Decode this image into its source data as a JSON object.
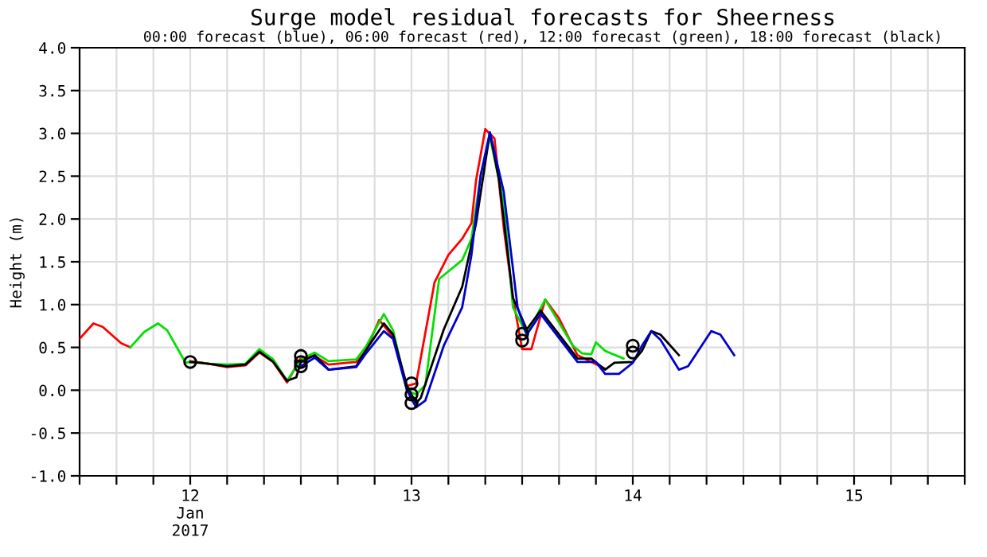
{
  "chart_data": {
    "type": "line",
    "title": "Surge model residual forecasts for Sheerness",
    "subtitle": "00:00 forecast (blue), 06:00 forecast (red), 12:00 forecast (green), 18:00 forecast (black)",
    "ylabel": "Height (m)",
    "xlim": [
      "2017-01-12T00:00",
      "2017-01-16T00:00"
    ],
    "xticks": [
      {
        "value": "2017-01-12T00:00",
        "label": null
      },
      {
        "value": "2017-01-12T04:00",
        "label": null
      },
      {
        "value": "2017-01-12T08:00",
        "label": null
      },
      {
        "value": "2017-01-12T12:00",
        "label": "12\nJan\n2017"
      },
      {
        "value": "2017-01-12T16:00",
        "label": null
      },
      {
        "value": "2017-01-12T20:00",
        "label": null
      },
      {
        "value": "2017-01-13T00:00",
        "label": null
      },
      {
        "value": "2017-01-13T04:00",
        "label": null
      },
      {
        "value": "2017-01-13T08:00",
        "label": null
      },
      {
        "value": "2017-01-13T12:00",
        "label": "13"
      },
      {
        "value": "2017-01-13T16:00",
        "label": null
      },
      {
        "value": "2017-01-13T20:00",
        "label": null
      },
      {
        "value": "2017-01-14T00:00",
        "label": null
      },
      {
        "value": "2017-01-14T04:00",
        "label": null
      },
      {
        "value": "2017-01-14T08:00",
        "label": null
      },
      {
        "value": "2017-01-14T12:00",
        "label": "14"
      },
      {
        "value": "2017-01-14T16:00",
        "label": null
      },
      {
        "value": "2017-01-14T20:00",
        "label": null
      },
      {
        "value": "2017-01-15T00:00",
        "label": null
      },
      {
        "value": "2017-01-15T04:00",
        "label": null
      },
      {
        "value": "2017-01-15T08:00",
        "label": null
      },
      {
        "value": "2017-01-15T12:00",
        "label": "15"
      },
      {
        "value": "2017-01-15T16:00",
        "label": null
      },
      {
        "value": "2017-01-15T20:00",
        "label": null
      },
      {
        "value": "2017-01-16T00:00",
        "label": null
      }
    ],
    "ylim": [
      -1.0,
      4.0
    ],
    "yticks": [
      {
        "value": -1.0,
        "label": "-1.0"
      },
      {
        "value": -0.5,
        "label": "-0.5"
      },
      {
        "value": 0.0,
        "label": "0.0"
      },
      {
        "value": 0.5,
        "label": "0.5"
      },
      {
        "value": 1.0,
        "label": "1.0"
      },
      {
        "value": 1.5,
        "label": "1.5"
      },
      {
        "value": 2.0,
        "label": "2.0"
      },
      {
        "value": 2.5,
        "label": "2.5"
      },
      {
        "value": 3.0,
        "label": "3.0"
      },
      {
        "value": 3.5,
        "label": "3.5"
      },
      {
        "value": 4.0,
        "label": "4.0"
      }
    ],
    "grid": true,
    "legend": false,
    "series": [
      {
        "color": "#ff0000",
        "x": [
          "2017-01-12T00:00",
          "2017-01-12T01:30",
          "2017-01-12T02:30",
          "2017-01-12T04:30",
          "2017-01-12T05:30",
          "2017-01-12T08:30",
          "2017-01-12T12:00",
          "2017-01-12T14:00",
          "2017-01-12T16:00",
          "2017-01-12T18:00",
          "2017-01-12T19:30",
          "2017-01-12T21:00",
          "2017-01-12T22:30",
          "2017-01-13T00:00",
          "2017-01-13T01:30",
          "2017-01-13T03:00",
          "2017-01-13T06:00",
          "2017-01-13T07:00",
          "2017-01-13T08:30",
          "2017-01-13T10:00",
          "2017-01-13T11:30",
          "2017-01-13T12:30",
          "2017-01-13T14:30",
          "2017-01-13T16:00",
          "2017-01-13T17:30",
          "2017-01-13T18:30",
          "2017-01-13T19:00",
          "2017-01-13T20:00",
          "2017-01-13T21:00",
          "2017-01-13T22:00",
          "2017-01-13T23:00",
          "2017-01-14T00:00",
          "2017-01-14T01:00",
          "2017-01-14T02:30",
          "2017-01-14T04:00",
          "2017-01-14T06:00",
          "2017-01-14T09:00"
        ],
        "values": [
          0.6,
          0.78,
          0.74,
          0.55,
          0.5,
          null,
          0.34,
          0.31,
          0.27,
          0.29,
          0.44,
          0.33,
          0.09,
          0.38,
          0.4,
          0.3,
          0.33,
          0.45,
          0.82,
          0.62,
          0.05,
          0.08,
          1.26,
          1.58,
          1.77,
          1.95,
          2.45,
          3.05,
          2.94,
          1.9,
          1.08,
          0.48,
          0.48,
          1.06,
          0.84,
          0.41,
          0.25
        ]
      },
      {
        "color": "#00e000",
        "x": [
          "2017-01-12T05:30",
          "2017-01-12T07:00",
          "2017-01-12T08:30",
          "2017-01-12T09:30",
          "2017-01-12T11:30",
          "2017-01-12T12:00",
          "2017-01-12T14:00",
          "2017-01-12T16:00",
          "2017-01-12T18:00",
          "2017-01-12T19:30",
          "2017-01-12T21:00",
          "2017-01-12T22:30",
          "2017-01-13T00:00",
          "2017-01-13T01:30",
          "2017-01-13T03:00",
          "2017-01-13T06:00",
          "2017-01-13T07:00",
          "2017-01-13T09:00",
          "2017-01-13T10:00",
          "2017-01-13T11:30",
          "2017-01-13T12:30",
          "2017-01-13T13:30",
          "2017-01-13T15:00",
          "2017-01-13T17:30",
          "2017-01-13T18:30",
          "2017-01-13T19:30",
          "2017-01-13T20:30",
          "2017-01-13T22:00",
          "2017-01-13T23:00",
          "2017-01-14T00:30",
          "2017-01-14T02:30",
          "2017-01-14T05:30",
          "2017-01-14T06:30",
          "2017-01-14T07:30",
          "2017-01-14T08:00",
          "2017-01-14T09:00",
          "2017-01-14T11:00"
        ],
        "values": [
          0.5,
          0.68,
          0.78,
          0.7,
          0.32,
          0.33,
          0.31,
          0.3,
          0.31,
          0.48,
          0.36,
          0.11,
          0.36,
          0.44,
          0.34,
          0.36,
          0.5,
          0.89,
          0.7,
          0.0,
          -0.05,
          0.06,
          1.3,
          1.52,
          1.77,
          2.51,
          2.96,
          2.19,
          0.97,
          0.65,
          1.06,
          0.52,
          0.43,
          0.42,
          0.56,
          0.46,
          0.37
        ]
      },
      {
        "color": "#000000",
        "x": [
          "2017-01-12T12:00",
          "2017-01-12T14:00",
          "2017-01-12T16:00",
          "2017-01-12T18:00",
          "2017-01-12T19:30",
          "2017-01-12T21:00",
          "2017-01-12T22:30",
          "2017-01-12T23:30",
          "2017-01-13T00:00",
          "2017-01-13T01:30",
          "2017-01-13T03:00",
          "2017-01-13T06:00",
          "2017-01-13T07:00",
          "2017-01-13T09:00",
          "2017-01-13T10:00",
          "2017-01-13T11:30",
          "2017-01-13T12:30",
          "2017-01-13T13:00",
          "2017-01-13T15:30",
          "2017-01-13T17:30",
          "2017-01-13T19:00",
          "2017-01-13T20:30",
          "2017-01-13T21:30",
          "2017-01-13T23:00",
          "2017-01-14T00:30",
          "2017-01-14T02:00",
          "2017-01-14T06:00",
          "2017-01-14T07:30",
          "2017-01-14T09:00",
          "2017-01-14T10:00",
          "2017-01-14T12:00",
          "2017-01-14T13:00",
          "2017-01-14T14:00",
          "2017-01-14T15:00",
          "2017-01-14T17:00"
        ],
        "values": [
          0.33,
          0.31,
          0.28,
          0.3,
          0.45,
          0.33,
          0.11,
          0.15,
          0.33,
          0.41,
          0.24,
          0.28,
          0.46,
          0.78,
          0.65,
          0.05,
          -0.15,
          -0.09,
          0.71,
          1.21,
          1.95,
          3.01,
          2.45,
          1.08,
          0.71,
          0.93,
          0.37,
          0.37,
          0.24,
          0.32,
          0.33,
          0.46,
          0.69,
          0.65,
          0.41
        ]
      },
      {
        "color": "#0000cc",
        "x": [
          "2017-01-13T00:00",
          "2017-01-13T01:30",
          "2017-01-13T03:00",
          "2017-01-13T06:00",
          "2017-01-13T07:00",
          "2017-01-13T09:00",
          "2017-01-13T10:00",
          "2017-01-13T11:30",
          "2017-01-13T12:30",
          "2017-01-13T13:30",
          "2017-01-13T15:30",
          "2017-01-13T17:30",
          "2017-01-13T18:30",
          "2017-01-13T19:30",
          "2017-01-13T20:30",
          "2017-01-13T22:00",
          "2017-01-13T23:30",
          "2017-01-14T00:30",
          "2017-01-14T02:00",
          "2017-01-14T06:00",
          "2017-01-14T08:00",
          "2017-01-14T09:00",
          "2017-01-14T10:30",
          "2017-01-14T12:00",
          "2017-01-14T13:00",
          "2017-01-14T14:00",
          "2017-01-14T15:00",
          "2017-01-14T17:00",
          "2017-01-14T18:00",
          "2017-01-14T20:30",
          "2017-01-14T21:30",
          "2017-01-14T23:00"
        ],
        "values": [
          0.28,
          0.38,
          0.24,
          0.27,
          0.42,
          0.69,
          0.6,
          0.0,
          -0.2,
          -0.12,
          0.52,
          0.97,
          1.58,
          2.51,
          3.01,
          2.32,
          0.97,
          0.65,
          0.89,
          0.33,
          0.33,
          0.19,
          0.19,
          0.32,
          0.52,
          0.69,
          0.59,
          0.24,
          0.28,
          0.69,
          0.65,
          0.41
        ]
      },
      {
        "type": "scatter",
        "marker": "circle",
        "color": "#000000",
        "x": [
          "2017-01-12T12:00",
          "2017-01-13T00:00",
          "2017-01-13T00:00",
          "2017-01-13T00:00",
          "2017-01-13T12:00",
          "2017-01-13T12:00",
          "2017-01-13T12:00",
          "2017-01-14T00:00",
          "2017-01-14T00:00",
          "2017-01-14T12:00",
          "2017-01-14T12:00"
        ],
        "values": [
          0.33,
          0.4,
          0.33,
          0.28,
          0.08,
          -0.05,
          -0.15,
          0.66,
          0.58,
          0.52,
          0.44
        ]
      }
    ]
  }
}
